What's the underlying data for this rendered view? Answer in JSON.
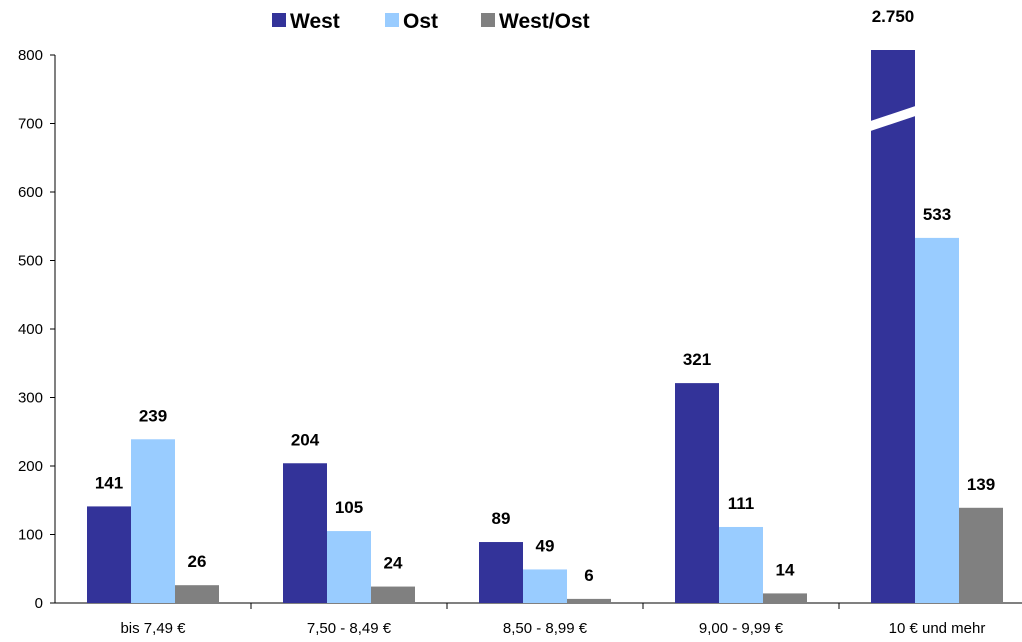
{
  "chart_data": {
    "type": "bar",
    "title": "",
    "xlabel": "",
    "ylabel": "",
    "categories": [
      "bis 7,49 €",
      "7,50 - 8,49 €",
      "8,50 - 8,99 €",
      "9,00 - 9,99 €",
      "10 € und mehr"
    ],
    "series": [
      {
        "name": "West",
        "color": "#333399",
        "values": [
          141,
          204,
          89,
          321,
          2750
        ],
        "labels": [
          "141",
          "204",
          "89",
          "321",
          "2.750"
        ]
      },
      {
        "name": "Ost",
        "color": "#99ccff",
        "values": [
          239,
          105,
          49,
          111,
          533
        ],
        "labels": [
          "239",
          "105",
          "49",
          "111",
          "533"
        ]
      },
      {
        "name": "West/Ost",
        "color": "#808080",
        "values": [
          26,
          24,
          6,
          14,
          139
        ],
        "labels": [
          "26",
          "24",
          "6",
          "14",
          "139"
        ]
      }
    ],
    "ylim": [
      0,
      800
    ],
    "yticks": [
      0,
      100,
      200,
      300,
      400,
      500,
      600,
      700,
      800
    ],
    "axis_break": {
      "series": "West",
      "category": "10 € und mehr"
    },
    "grid": false,
    "legend_position": "top"
  }
}
